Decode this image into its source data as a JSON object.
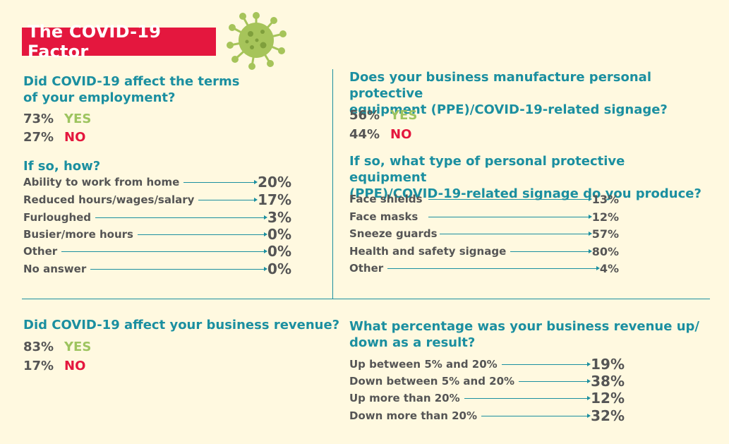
{
  "title": "The COVID-19 Factor",
  "virus_icon": "coronavirus-icon",
  "colors": {
    "accent_red": "#e4173e",
    "teal": "#1b8fa0",
    "green": "#9dc45f",
    "background": "#fff9e0"
  },
  "q1": {
    "question": "Did COVID-19 affect the terms of your employment?",
    "yes_pct": "73%",
    "yes_label": "YES",
    "no_pct": "27%",
    "no_label": "NO"
  },
  "q1b": {
    "question": "If so, how?",
    "items": [
      {
        "label": "Ability to work from home",
        "value": "20%"
      },
      {
        "label": "Reduced hours/wages/salary",
        "value": "17%"
      },
      {
        "label": "Furloughed",
        "value": "3%"
      },
      {
        "label": "Busier/more hours",
        "value": "0%"
      },
      {
        "label": "Other",
        "value": "0%"
      },
      {
        "label": "No answer",
        "value": "0%"
      }
    ]
  },
  "q2": {
    "question": "Does your business manufacture personal protective equipment (PPE)/COVID-19-related signage?",
    "yes_pct": "56%",
    "yes_label": "YES",
    "no_pct": "44%",
    "no_label": "NO"
  },
  "q2b": {
    "question": "If so, what type of personal protective equipment (PPE)/COVID-19-related signage do you produce?",
    "items": [
      {
        "label": "Face shields",
        "value": "13%"
      },
      {
        "label": "Face masks",
        "value": "12%"
      },
      {
        "label": "Sneeze guards",
        "value": "57%"
      },
      {
        "label": "Health and safety signage",
        "value": "80%"
      },
      {
        "label": "Other",
        "value": "4%"
      }
    ]
  },
  "q3": {
    "question": "Did COVID-19 affect your business revenue?",
    "yes_pct": "83%",
    "yes_label": "YES",
    "no_pct": "17%",
    "no_label": "NO"
  },
  "q4": {
    "question": "What percentage was your business revenue up/ down as a result?",
    "items": [
      {
        "label": "Up between 5% and 20%",
        "value": "19%"
      },
      {
        "label": "Down between 5% and 20%",
        "value": "38%"
      },
      {
        "label": "Up more than 20%",
        "value": "12%"
      },
      {
        "label": "Down more than 20%",
        "value": "32%"
      }
    ]
  }
}
